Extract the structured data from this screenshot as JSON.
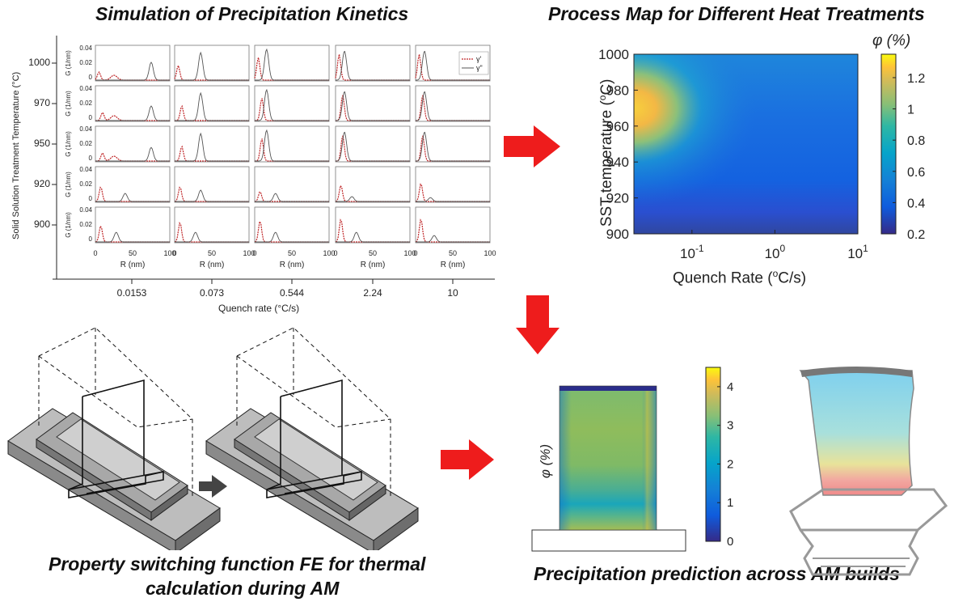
{
  "titles": {
    "sim": "Simulation of Precipitation Kinetics",
    "map": "Process Map for Different Heat Treatments",
    "fe_line1": "Property switching function FE for thermal",
    "fe_line2": "calculation during AM",
    "pred": "Precipitation prediction across AM builds"
  },
  "sim_panel": {
    "ylabel": "Solid Solution Treatment Temperature (°C)",
    "xlabel": "Quench rate (°C/s)",
    "quench_rates": [
      "0.0153",
      "0.073",
      "0.544",
      "2.24",
      "10"
    ],
    "temperatures": [
      "1000",
      "970",
      "950",
      "920",
      "900"
    ],
    "g_label": "G (1/nm)",
    "g_ticks": [
      "0.04",
      "0.02",
      "0"
    ],
    "r_label": "R (nm)",
    "r_ticks": [
      "0",
      "50",
      "100"
    ],
    "legend": [
      "γ'",
      "γ\""
    ],
    "colors": {
      "gamma_prime": "#c0282a",
      "gamma_dprime": "#555555"
    }
  },
  "chart_data": {
    "type": "heatmap",
    "title": "Process Map for Different Heat Treatments",
    "xlabel": "Quench Rate (°C/s)",
    "ylabel": "SST temperature (°C)",
    "colorbar_label": "φ (%)",
    "x_scale": "log",
    "x_tick_labels": [
      "10^-1",
      "10^0",
      "10^1"
    ],
    "y_ticks": [
      900,
      920,
      940,
      960,
      980,
      1000
    ],
    "ylim": [
      900,
      1000
    ],
    "colorbar_ticks": [
      0.2,
      0.4,
      0.6,
      0.8,
      1,
      1.2
    ],
    "colorbar_range": [
      0.2,
      1.35
    ],
    "colormap": "parula"
  },
  "build_plot": {
    "colorbar_label": "φ (%)",
    "colorbar_ticks": [
      "0",
      "1",
      "2",
      "3",
      "4"
    ]
  }
}
